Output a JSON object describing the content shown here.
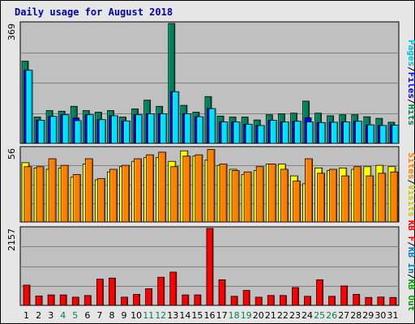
{
  "title": "Daily usage for August 2018",
  "colors": {
    "hits": "#00805c",
    "files": "#0000ff",
    "pages": "#00e0ff",
    "visits": "#ffff00",
    "sites": "#ff8000",
    "kb": "#ff0000",
    "weekday_label": "#000000",
    "weekend_label": "#00805c",
    "legend_kbin": "#0080c0",
    "legend_kbout": "#00a000",
    "panel_bg": "#c0c0c0"
  },
  "panel1_legend": [
    {
      "text": "Pages",
      "color": "#00c0e0"
    },
    {
      "text": "/",
      "color": "#000000"
    },
    {
      "text": "Files",
      "color": "#0000ff"
    },
    {
      "text": "/",
      "color": "#000000"
    },
    {
      "text": "Hits",
      "color": "#00805c"
    }
  ],
  "panel2_legend": [
    {
      "text": "Sites",
      "color": "#ff8000"
    },
    {
      "text": "/",
      "color": "#000000"
    },
    {
      "text": "Visits",
      "color": "#c8c800"
    }
  ],
  "panel3_legend": [
    {
      "text": "KB F",
      "color": "#ff0000"
    },
    {
      "text": "/",
      "color": "#000000"
    },
    {
      "text": "KB In",
      "color": "#0080c0"
    },
    {
      "text": "/",
      "color": "#000000"
    },
    {
      "text": "KB Out",
      "color": "#00a000"
    }
  ],
  "chart_data": [
    {
      "type": "bar",
      "name": "hits-files-pages",
      "ymax_label": "369",
      "ylim": [
        0,
        369
      ],
      "categories": [
        "1",
        "2",
        "3",
        "4",
        "5",
        "6",
        "7",
        "8",
        "9",
        "10",
        "11",
        "12",
        "13",
        "14",
        "15",
        "16",
        "17",
        "18",
        "19",
        "20",
        "21",
        "22",
        "23",
        "24",
        "25",
        "26",
        "27",
        "28",
        "29",
        "30",
        "31"
      ],
      "weekend": [
        false,
        false,
        false,
        true,
        true,
        false,
        false,
        false,
        false,
        false,
        true,
        true,
        false,
        false,
        false,
        false,
        false,
        true,
        true,
        false,
        false,
        false,
        false,
        false,
        true,
        true,
        false,
        false,
        false,
        false,
        false
      ],
      "series": [
        {
          "name": "Hits",
          "values": [
            253,
            81,
            101,
            99,
            114,
            101,
            96,
            101,
            81,
            106,
            133,
            114,
            369,
            117,
            96,
            144,
            84,
            81,
            81,
            72,
            88,
            91,
            93,
            130,
            93,
            85,
            88,
            88,
            82,
            77,
            65
          ]
        },
        {
          "name": "Files",
          "values": [
            225,
            71,
            83,
            88,
            78,
            88,
            73,
            85,
            69,
            88,
            91,
            91,
            159,
            91,
            82,
            107,
            66,
            66,
            59,
            55,
            71,
            66,
            68,
            79,
            64,
            65,
            66,
            68,
            57,
            55,
            56
          ]
        },
        {
          "name": "Pages",
          "values": [
            225,
            71,
            83,
            88,
            70,
            88,
            73,
            85,
            69,
            88,
            91,
            91,
            159,
            91,
            82,
            107,
            66,
            66,
            59,
            55,
            71,
            66,
            68,
            66,
            64,
            65,
            66,
            68,
            57,
            55,
            56
          ]
        }
      ]
    },
    {
      "type": "bar",
      "name": "visits-sites",
      "ymax_label": "56",
      "ylim": [
        0,
        56
      ],
      "series": [
        {
          "name": "Visits",
          "values": [
            45,
            41,
            40,
            41,
            34,
            44,
            32,
            38,
            42,
            46,
            49,
            49,
            46,
            54,
            50,
            47,
            43,
            40,
            36,
            39,
            44,
            44,
            35,
            29,
            41,
            39,
            41,
            40,
            42,
            43,
            42
          ]
        },
        {
          "name": "Sites",
          "values": [
            42,
            42,
            48,
            43,
            36,
            48,
            33,
            40,
            43,
            48,
            51,
            53,
            42,
            50,
            51,
            55,
            44,
            39,
            38,
            42,
            44,
            40,
            31,
            48,
            37,
            40,
            35,
            42,
            35,
            37,
            38
          ]
        }
      ]
    },
    {
      "type": "bar",
      "name": "kbytes",
      "ymax_label": "2157",
      "ylim": [
        0,
        2157
      ],
      "series": [
        {
          "name": "KB F",
          "values": [
            568,
            265,
            293,
            293,
            230,
            277,
            734,
            765,
            230,
            309,
            467,
            789,
            932,
            293,
            293,
            2157,
            718,
            254,
            419,
            230,
            277,
            277,
            500,
            254,
            718,
            254,
            545,
            309,
            222,
            233,
            222
          ]
        }
      ]
    }
  ]
}
